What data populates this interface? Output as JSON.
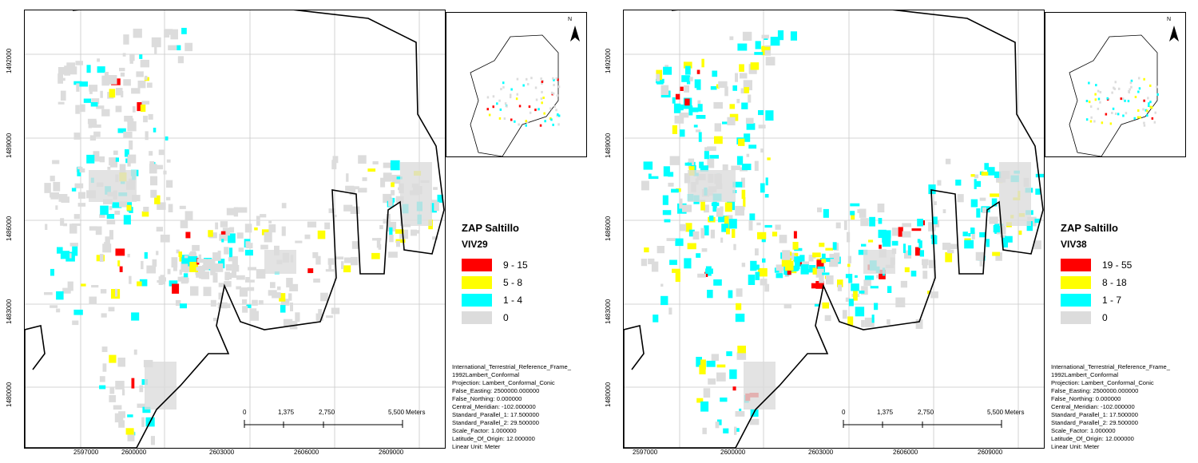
{
  "maps": [
    {
      "id": "viv29",
      "legend_title": "ZAP Saltillo",
      "variable": "VIV29",
      "classes": [
        {
          "label": "9 - 15",
          "color": "#ff0000"
        },
        {
          "label": "5 - 8",
          "color": "#ffff00"
        },
        {
          "label": "1 - 4",
          "color": "#00ffff"
        },
        {
          "label": "0",
          "color": "#dcdcdc"
        }
      ]
    },
    {
      "id": "viv38",
      "legend_title": "ZAP Saltillo",
      "variable": "VIV38",
      "classes": [
        {
          "label": "19 - 55",
          "color": "#ff0000"
        },
        {
          "label": "8 - 18",
          "color": "#ffff00"
        },
        {
          "label": "1 - 7",
          "color": "#00ffff"
        },
        {
          "label": "0",
          "color": "#dcdcdc"
        }
      ]
    }
  ],
  "projection": [
    "International_Terrestrial_Reference_Frame_",
    "1992Lambert_Conformal",
    "Projection: Lambert_Conformal_Conic",
    "False_Easting: 2500000.000000",
    "False_Northing: 0.000000",
    "Central_Meridian: -102.000000",
    "Standard_Parallel_1: 17.500000",
    "Standard_Parallel_2: 29.500000",
    "Scale_Factor: 1.000000",
    "Latitude_Of_Origin: 12.000000",
    "Linear Unit: Meter"
  ],
  "scale_bar": {
    "ticks": [
      "0",
      "1,375",
      "2,750",
      "5,500"
    ],
    "unit": "Meters"
  },
  "x_ticks": [
    "2597000",
    "2600000",
    "2603000",
    "2606000",
    "2609000"
  ],
  "y_ticks": [
    "1492000",
    "1489000",
    "1486000",
    "1483000",
    "1480000"
  ],
  "north_label": "N"
}
